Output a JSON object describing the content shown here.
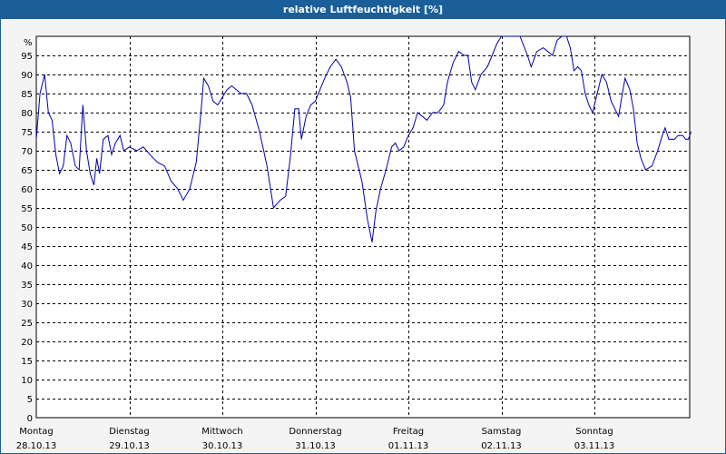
{
  "window": {
    "title": "relative Luftfeuchtigkeit [%]"
  },
  "colors": {
    "titlebar": "#1a5f99",
    "line": "#0000aa",
    "grid": "#000000",
    "background": "#ffffff"
  },
  "chart_data": {
    "type": "line",
    "title": "relative Luftfeuchtigkeit [%]",
    "ylabel": "%",
    "ylim": [
      0,
      100
    ],
    "yticks": [
      0,
      5,
      10,
      15,
      20,
      25,
      30,
      35,
      40,
      45,
      50,
      55,
      60,
      65,
      70,
      75,
      80,
      85,
      90,
      95
    ],
    "xlim": [
      0,
      7
    ],
    "grid": true,
    "xticks": [
      {
        "x": 0,
        "day": "Montag",
        "date": "28.10.13"
      },
      {
        "x": 1,
        "day": "Dienstag",
        "date": "29.10.13"
      },
      {
        "x": 2,
        "day": "Mittwoch",
        "date": "30.10.13"
      },
      {
        "x": 3,
        "day": "Donnerstag",
        "date": "31.10.13"
      },
      {
        "x": 4,
        "day": "Freitag",
        "date": "01.11.13"
      },
      {
        "x": 5,
        "day": "Samstag",
        "date": "02.11.13"
      },
      {
        "x": 6,
        "day": "Sonntag",
        "date": "03.11.13"
      }
    ],
    "series": [
      {
        "values": [
          [
            0.0,
            73
          ],
          [
            0.04,
            85
          ],
          [
            0.09,
            90
          ],
          [
            0.13,
            80
          ],
          [
            0.17,
            78
          ],
          [
            0.21,
            69
          ],
          [
            0.25,
            64
          ],
          [
            0.29,
            66
          ],
          [
            0.33,
            74
          ],
          [
            0.37,
            72
          ],
          [
            0.42,
            66
          ],
          [
            0.46,
            65
          ],
          [
            0.5,
            82
          ],
          [
            0.54,
            70
          ],
          [
            0.58,
            64
          ],
          [
            0.62,
            61
          ],
          [
            0.65,
            68
          ],
          [
            0.68,
            64
          ],
          [
            0.72,
            73
          ],
          [
            0.77,
            74
          ],
          [
            0.81,
            69
          ],
          [
            0.85,
            72
          ],
          [
            0.9,
            74
          ],
          [
            0.94,
            70
          ],
          [
            1.0,
            71
          ],
          [
            1.08,
            70
          ],
          [
            1.15,
            71
          ],
          [
            1.22,
            69
          ],
          [
            1.3,
            67
          ],
          [
            1.38,
            66
          ],
          [
            1.45,
            62
          ],
          [
            1.52,
            60
          ],
          [
            1.58,
            57
          ],
          [
            1.65,
            60
          ],
          [
            1.72,
            67
          ],
          [
            1.77,
            80
          ],
          [
            1.8,
            89
          ],
          [
            1.85,
            87
          ],
          [
            1.9,
            83
          ],
          [
            1.95,
            82
          ],
          [
            2.0,
            84
          ],
          [
            2.05,
            86
          ],
          [
            2.1,
            87
          ],
          [
            2.15,
            86
          ],
          [
            2.2,
            85
          ],
          [
            2.26,
            85
          ],
          [
            2.32,
            82
          ],
          [
            2.4,
            75
          ],
          [
            2.48,
            66
          ],
          [
            2.55,
            55
          ],
          [
            2.62,
            57
          ],
          [
            2.68,
            58
          ],
          [
            2.73,
            68
          ],
          [
            2.78,
            81
          ],
          [
            2.82,
            81
          ],
          [
            2.85,
            73
          ],
          [
            2.9,
            79
          ],
          [
            2.95,
            82
          ],
          [
            3.0,
            83
          ],
          [
            3.05,
            86
          ],
          [
            3.1,
            89
          ],
          [
            3.16,
            92
          ],
          [
            3.22,
            94
          ],
          [
            3.28,
            92
          ],
          [
            3.34,
            88
          ],
          [
            3.38,
            84
          ],
          [
            3.42,
            70
          ],
          [
            3.5,
            62
          ],
          [
            3.56,
            52
          ],
          [
            3.61,
            46
          ],
          [
            3.65,
            54
          ],
          [
            3.7,
            60
          ],
          [
            3.76,
            65
          ],
          [
            3.82,
            71
          ],
          [
            3.86,
            72
          ],
          [
            3.9,
            70
          ],
          [
            3.95,
            71
          ],
          [
            4.0,
            74
          ],
          [
            4.05,
            76
          ],
          [
            4.1,
            80
          ],
          [
            4.15,
            79
          ],
          [
            4.2,
            78
          ],
          [
            4.26,
            80
          ],
          [
            4.32,
            80
          ],
          [
            4.38,
            82
          ],
          [
            4.42,
            88
          ],
          [
            4.48,
            93
          ],
          [
            4.54,
            96
          ],
          [
            4.6,
            95
          ],
          [
            4.64,
            95
          ],
          [
            4.68,
            88
          ],
          [
            4.72,
            86
          ],
          [
            4.78,
            90
          ],
          [
            4.85,
            92
          ],
          [
            4.9,
            95
          ],
          [
            4.95,
            98
          ],
          [
            5.0,
            100
          ],
          [
            5.1,
            100
          ],
          [
            5.2,
            100
          ],
          [
            5.28,
            95
          ],
          [
            5.32,
            92
          ],
          [
            5.38,
            96
          ],
          [
            5.45,
            97
          ],
          [
            5.5,
            96
          ],
          [
            5.55,
            95
          ],
          [
            5.6,
            99
          ],
          [
            5.65,
            100
          ],
          [
            5.7,
            100
          ],
          [
            5.74,
            97
          ],
          [
            5.78,
            91
          ],
          [
            5.82,
            92
          ],
          [
            5.86,
            91
          ],
          [
            5.9,
            85
          ],
          [
            5.94,
            82
          ],
          [
            5.98,
            80
          ],
          [
            6.03,
            85
          ],
          [
            6.08,
            90
          ],
          [
            6.13,
            88
          ],
          [
            6.18,
            83
          ],
          [
            6.22,
            81
          ],
          [
            6.26,
            79
          ],
          [
            6.3,
            85
          ],
          [
            6.33,
            89
          ],
          [
            6.38,
            86
          ],
          [
            6.42,
            81
          ],
          [
            6.46,
            72
          ],
          [
            6.5,
            68
          ],
          [
            6.55,
            65
          ],
          [
            6.62,
            66
          ],
          [
            6.68,
            70
          ],
          [
            6.73,
            74
          ],
          [
            6.76,
            76
          ],
          [
            6.8,
            73
          ],
          [
            6.86,
            73
          ],
          [
            6.9,
            74
          ],
          [
            6.95,
            74
          ],
          [
            6.98,
            73
          ],
          [
            7.01,
            73
          ],
          [
            7.04,
            75
          ]
        ]
      }
    ]
  }
}
